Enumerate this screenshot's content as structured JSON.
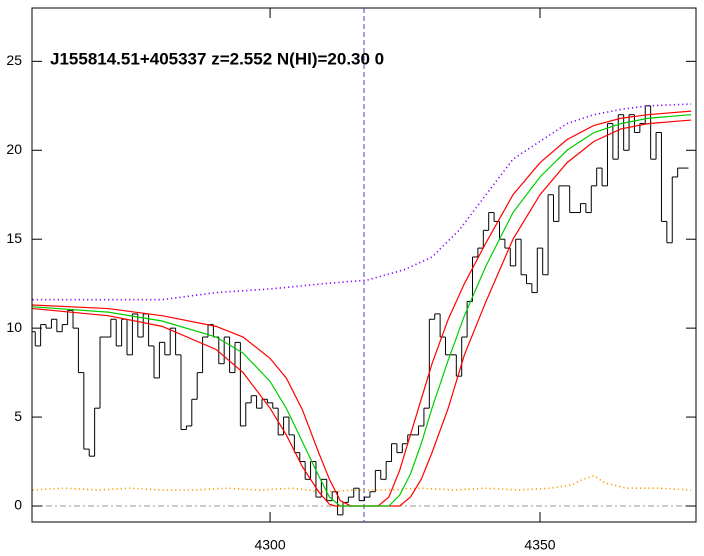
{
  "chart_data": {
    "type": "spectrum",
    "title": "J155814.51+405337 z=2.552 N(HI)=20.30 0",
    "xlim": [
      4255.9,
      4378.9
    ],
    "ylim": [
      -0.9,
      28
    ],
    "xticks": [
      4300,
      4350
    ],
    "yticks": [
      0,
      5,
      10,
      15,
      20,
      25
    ],
    "vline": 4317.4,
    "hline": 0,
    "series": [
      {
        "style": "step",
        "color": "#000000",
        "x": [
          4256,
          4257,
          4258,
          4259,
          4260,
          4261,
          4262,
          4263,
          4264,
          4265,
          4266,
          4267,
          4268,
          4269,
          4270,
          4271,
          4272,
          4273,
          4274,
          4275,
          4276,
          4277,
          4278,
          4279,
          4280,
          4281,
          4282,
          4283,
          4284,
          4285,
          4286,
          4287,
          4288,
          4289,
          4290,
          4291,
          4292,
          4293,
          4294,
          4295,
          4296,
          4297,
          4298,
          4299,
          4300,
          4301,
          4302,
          4303,
          4304,
          4305,
          4306,
          4307,
          4308,
          4309,
          4310,
          4311,
          4312,
          4313,
          4314,
          4315,
          4316,
          4317,
          4318,
          4319,
          4320,
          4321,
          4322,
          4323,
          4324,
          4325,
          4326,
          4327,
          4328,
          4329,
          4330,
          4331,
          4332,
          4333,
          4334,
          4335,
          4336,
          4337,
          4338,
          4339,
          4340,
          4341,
          4342,
          4343,
          4344,
          4345,
          4346,
          4347,
          4348,
          4349,
          4350,
          4351,
          4352,
          4353,
          4354,
          4355,
          4356,
          4357,
          4358,
          4359,
          4360,
          4361,
          4362,
          4363,
          4364,
          4365,
          4366,
          4367,
          4368,
          4369,
          4370,
          4371,
          4372,
          4373,
          4374,
          4375,
          4376,
          4377
        ],
        "values": [
          9.8,
          9,
          10.2,
          10,
          10.5,
          9.8,
          10.2,
          11,
          10,
          7.5,
          3.2,
          2.8,
          5.5,
          9.5,
          9.5,
          10.5,
          9,
          10.5,
          8.5,
          10.8,
          9.5,
          10.8,
          9,
          7.2,
          9.2,
          8.5,
          10,
          8.5,
          4.3,
          4.5,
          6,
          7.5,
          9.5,
          10.2,
          9.5,
          8,
          9.5,
          7.5,
          9.2,
          4.5,
          5.8,
          6.2,
          5.5,
          6,
          5.8,
          5.5,
          4,
          5,
          4,
          3,
          2.5,
          1.5,
          2.5,
          0.5,
          1.5,
          0.3,
          0.8,
          -0.5,
          0.2,
          0.5,
          1,
          0.3,
          0.5,
          0.8,
          2,
          1.5,
          2.5,
          3.5,
          3,
          3.5,
          4,
          4,
          4.5,
          5.5,
          10.5,
          10.8,
          9.5,
          8.5,
          8.5,
          7.3,
          9.5,
          11.5,
          14,
          14.5,
          15.5,
          16.5,
          16,
          15,
          14.5,
          13.5,
          15,
          13,
          12.5,
          12,
          14.5,
          13,
          17.5,
          16,
          18,
          18,
          16.5,
          16.5,
          17,
          16.5,
          18,
          19,
          18,
          21.5,
          19.5,
          22,
          20,
          22,
          21,
          21.5,
          22.5,
          19.5,
          21,
          16,
          14.8,
          18.5,
          19,
          19
        ]
      },
      {
        "style": "dotted",
        "color": "#8800ff",
        "x": [
          4256,
          4270,
          4280,
          4290,
          4300,
          4310,
          4318,
          4325,
          4330,
          4335,
          4340,
          4345,
          4350,
          4355,
          4360,
          4365,
          4370,
          4378
        ],
        "values": [
          11.6,
          11.6,
          11.6,
          12,
          12.2,
          12.5,
          12.7,
          13.3,
          14,
          15.5,
          17.5,
          19.5,
          20.5,
          21.5,
          22,
          22.3,
          22.5,
          22.6
        ]
      },
      {
        "style": "dotted",
        "color": "#ff9900",
        "x": [
          4256,
          4262,
          4268,
          4274,
          4280,
          4286,
          4292,
          4298,
          4304,
          4310,
          4316,
          4322,
          4328,
          4334,
          4340,
          4346,
          4352,
          4356,
          4358,
          4360,
          4362,
          4366,
          4372,
          4378
        ],
        "values": [
          0.9,
          1.0,
          0.9,
          1.0,
          0.9,
          0.9,
          1.0,
          0.9,
          1.0,
          0.8,
          0.9,
          0.9,
          1.0,
          0.9,
          1.0,
          0.9,
          1.0,
          1.2,
          1.5,
          1.7,
          1.3,
          1.0,
          1.0,
          0.9
        ]
      },
      {
        "style": "solid",
        "color": "#ff0000",
        "x": [
          4256,
          4270,
          4280,
          4290,
          4295,
          4300,
          4303,
          4306,
          4309,
          4311,
          4313,
          4315,
          4320,
          4322,
          4324,
          4326,
          4328,
          4330,
          4333,
          4336,
          4340,
          4345,
          4350,
          4355,
          4360,
          4365,
          4370,
          4378
        ],
        "values": [
          11.3,
          11.1,
          10.7,
          10.1,
          9.5,
          8.3,
          7.2,
          5.4,
          3.0,
          1.5,
          0.3,
          0,
          0,
          0.5,
          2,
          4,
          6,
          8,
          10.5,
          12.5,
          14.8,
          17.5,
          19.3,
          20.6,
          21.4,
          21.8,
          22,
          22.2
        ]
      },
      {
        "style": "solid",
        "color": "#ff0000",
        "x": [
          4256,
          4270,
          4280,
          4290,
          4295,
          4300,
          4303,
          4306,
          4309,
          4311,
          4312,
          4324,
          4326,
          4328,
          4330,
          4333,
          4336,
          4340,
          4345,
          4350,
          4355,
          4360,
          4365,
          4370,
          4378
        ],
        "values": [
          11.1,
          10.7,
          10.1,
          8.8,
          7.5,
          5.5,
          4,
          2.2,
          0.8,
          0.1,
          0,
          0,
          0.5,
          1.5,
          3,
          5.5,
          8.5,
          11.5,
          15,
          17.5,
          19.3,
          20.5,
          21.2,
          21.5,
          21.7
        ]
      },
      {
        "style": "solid",
        "color": "#00cc00",
        "x": [
          4256,
          4270,
          4280,
          4290,
          4295,
          4300,
          4303,
          4306,
          4309,
          4311,
          4313,
          4322,
          4324,
          4326,
          4328,
          4330,
          4333,
          4336,
          4340,
          4345,
          4350,
          4355,
          4360,
          4365,
          4370,
          4378
        ],
        "values": [
          11.2,
          10.9,
          10.4,
          9.5,
          8.6,
          7,
          5.5,
          3.6,
          1.7,
          0.5,
          0,
          0,
          0.6,
          1.8,
          3.5,
          5.5,
          8.2,
          10.7,
          13.5,
          16.5,
          18.5,
          20,
          21,
          21.5,
          21.8,
          22
        ]
      }
    ]
  }
}
